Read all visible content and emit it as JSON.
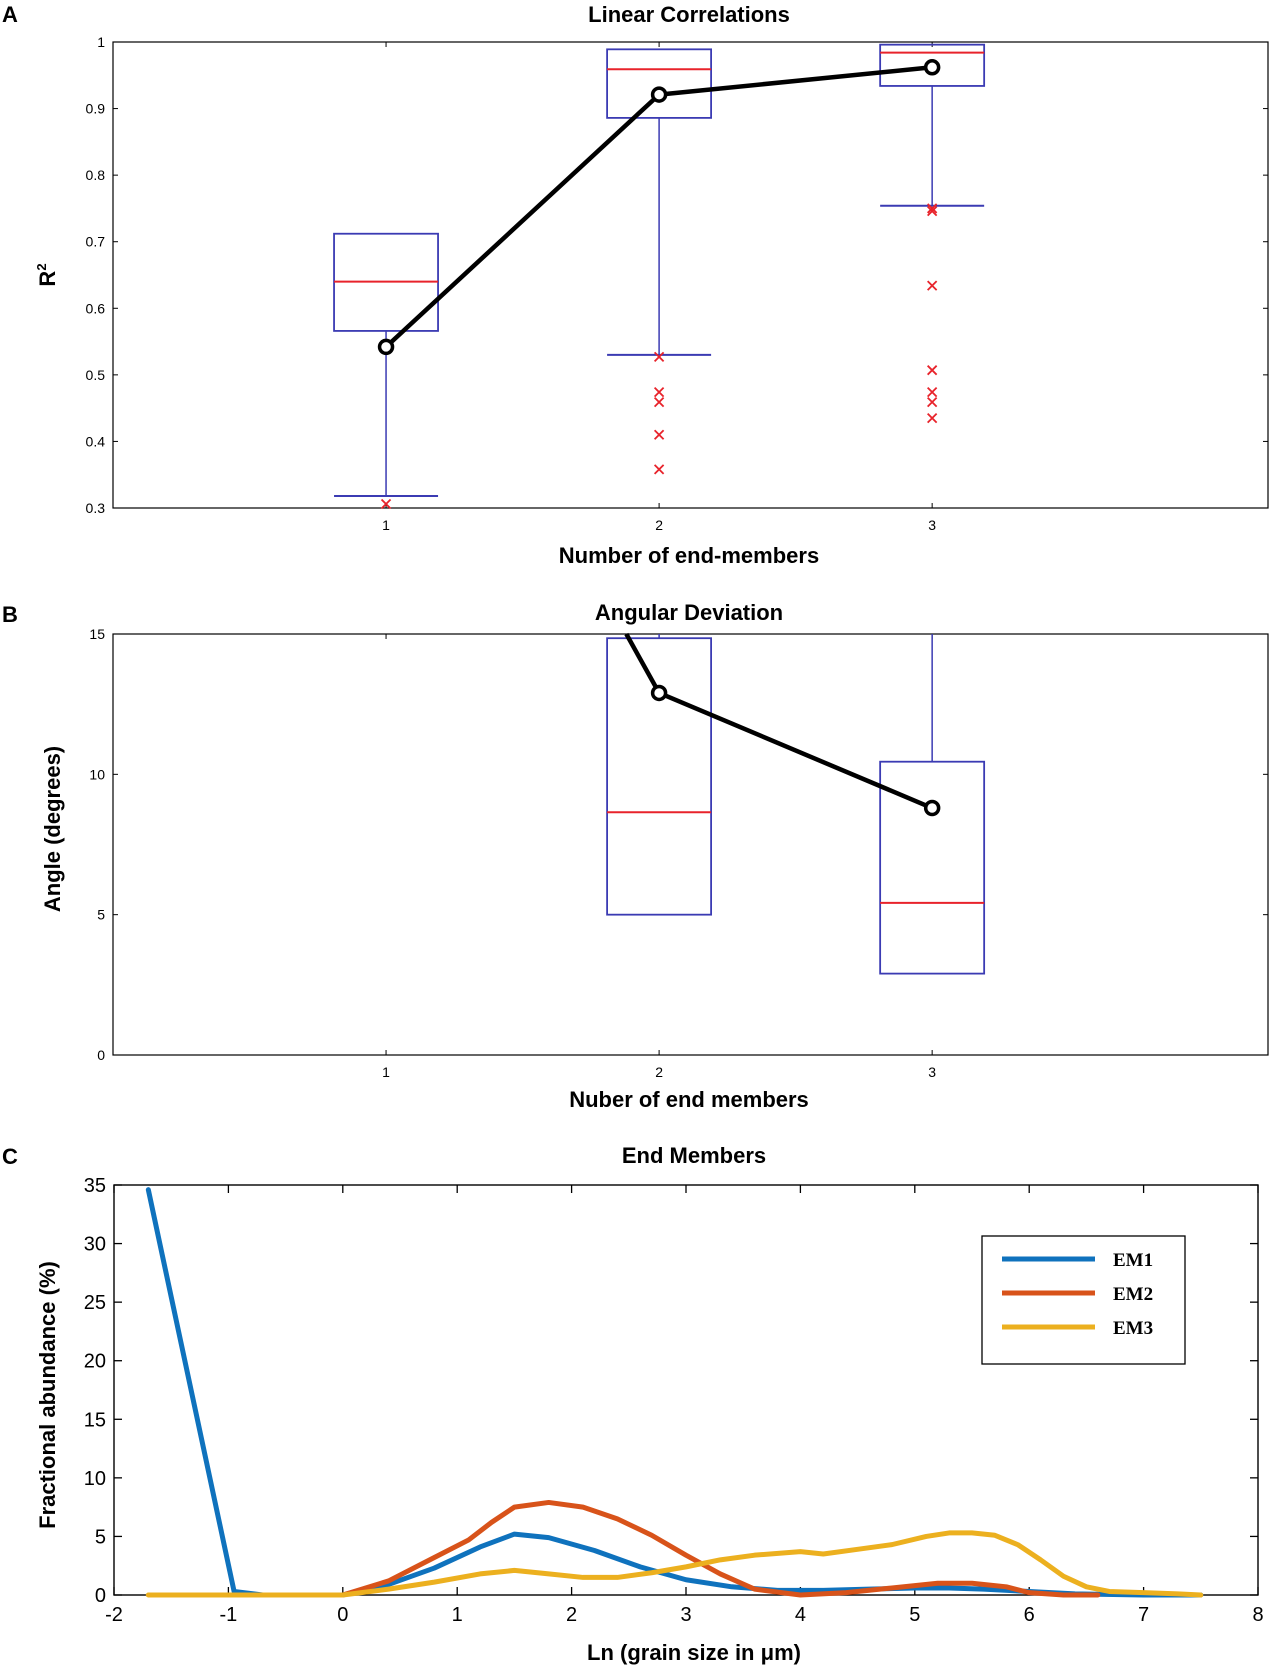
{
  "chart_data": [
    {
      "panel": "A",
      "type": "box",
      "title": "Linear Correlations",
      "xlabel": "Number of end-members",
      "ylabel": "R",
      "ylabel_sup": "2",
      "ylim": [
        0.3,
        1.0
      ],
      "xticks": [
        1,
        2,
        3
      ],
      "yticks": [
        "0.3",
        "0.4",
        "0.5",
        "0.6",
        "0.7",
        "0.8",
        "0.9",
        "1"
      ],
      "boxes": [
        {
          "x": 1,
          "q1": 0.566,
          "median": 0.64,
          "q3": 0.712,
          "whisker_low": 0.318,
          "whisker_high": 0.712,
          "outliers": [
            0.306
          ]
        },
        {
          "x": 2,
          "q1": 0.886,
          "median": 0.959,
          "q3": 0.989,
          "whisker_low": 0.53,
          "whisker_high": 0.989,
          "outliers": [
            0.527,
            0.474,
            0.459,
            0.41,
            0.358
          ]
        },
        {
          "x": 3,
          "q1": 0.934,
          "median": 0.984,
          "q3": 0.996,
          "whisker_low": 0.754,
          "whisker_high": 0.996,
          "outliers": [
            0.75,
            0.746,
            0.634,
            0.507,
            0.474,
            0.459,
            0.435
          ]
        }
      ],
      "mean_line": {
        "x": [
          1,
          2,
          3
        ],
        "y": [
          0.542,
          0.921,
          0.962
        ]
      },
      "colors": {
        "box": "#3b3bb3",
        "median": "#e8232b",
        "outlier": "#e8232b",
        "mean": "#000000"
      }
    },
    {
      "panel": "B",
      "type": "box",
      "title": "Angular Deviation",
      "xlabel": "Nuber of end members",
      "ylabel": "Angle (degrees)",
      "ylim": [
        0,
        15
      ],
      "xticks": [
        1,
        2,
        3
      ],
      "yticks": [
        "0",
        "5",
        "10",
        "15"
      ],
      "boxes": [
        {
          "x": 2,
          "q1": 5.0,
          "median": 8.65,
          "q3": 14.85,
          "whisker_low": 5.0,
          "whisker_high": 15.0
        },
        {
          "x": 3,
          "q1": 2.9,
          "median": 5.42,
          "q3": 10.45,
          "whisker_low": 2.9,
          "whisker_high": 15.0
        }
      ],
      "mean_line": {
        "x": [
          1.88,
          2,
          3
        ],
        "y": [
          15.0,
          12.9,
          8.8
        ]
      },
      "colors": {
        "box": "#3b3bb3",
        "median": "#e8232b",
        "mean": "#000000"
      }
    },
    {
      "panel": "C",
      "type": "line",
      "title": "End Members",
      "xlabel": "Ln (grain size in μm)",
      "ylabel": "Fractional abundance (%)",
      "xlim": [
        -2,
        8
      ],
      "ylim": [
        0,
        35
      ],
      "xticks": [
        "-2",
        "-1",
        "0",
        "1",
        "2",
        "3",
        "4",
        "5",
        "6",
        "7",
        "8"
      ],
      "yticks": [
        "0",
        "5",
        "10",
        "15",
        "20",
        "25",
        "30",
        "35"
      ],
      "legend": {
        "position": "top-right",
        "entries": [
          "EM1",
          "EM2",
          "EM3"
        ]
      },
      "series": [
        {
          "name": "EM1",
          "color": "#0f72bd",
          "x": [
            -1.7,
            -0.95,
            -0.7,
            0,
            0.4,
            0.8,
            1.2,
            1.5,
            1.8,
            2.2,
            2.6,
            3.0,
            3.4,
            3.8,
            4.2,
            4.6,
            5.0,
            5.3,
            5.6,
            6.0,
            6.4,
            7.0,
            7.5
          ],
          "y": [
            34.6,
            0.3,
            0.0,
            0.0,
            0.9,
            2.3,
            4.1,
            5.2,
            4.9,
            3.8,
            2.4,
            1.3,
            0.7,
            0.4,
            0.4,
            0.5,
            0.6,
            0.6,
            0.5,
            0.3,
            0.1,
            0.0,
            0.0
          ]
        },
        {
          "name": "EM2",
          "color": "#d8531a",
          "x": [
            0,
            0.4,
            0.8,
            1.1,
            1.3,
            1.5,
            1.8,
            2.1,
            2.4,
            2.7,
            3.0,
            3.3,
            3.6,
            4.0,
            4.4,
            4.8,
            5.2,
            5.5,
            5.8,
            6.0,
            6.3,
            6.6
          ],
          "y": [
            0.0,
            1.2,
            3.2,
            4.7,
            6.2,
            7.5,
            7.9,
            7.5,
            6.5,
            5.1,
            3.4,
            1.8,
            0.5,
            0.0,
            0.2,
            0.6,
            1.0,
            1.0,
            0.7,
            0.2,
            0.0,
            0.0
          ]
        },
        {
          "name": "EM3",
          "color": "#ecb01f",
          "x": [
            -1.7,
            -1.0,
            -0.5,
            0,
            0.4,
            0.8,
            1.2,
            1.5,
            1.8,
            2.1,
            2.4,
            2.7,
            3.0,
            3.3,
            3.6,
            4.0,
            4.2,
            4.5,
            4.8,
            5.1,
            5.3,
            5.5,
            5.7,
            5.9,
            6.1,
            6.3,
            6.5,
            6.7,
            7.0,
            7.3,
            7.5
          ],
          "y": [
            0.0,
            0.0,
            0.0,
            0.0,
            0.5,
            1.1,
            1.8,
            2.1,
            1.8,
            1.5,
            1.5,
            1.9,
            2.4,
            3.0,
            3.4,
            3.7,
            3.5,
            3.9,
            4.3,
            5.0,
            5.3,
            5.3,
            5.1,
            4.3,
            3.0,
            1.6,
            0.7,
            0.3,
            0.2,
            0.1,
            0.0
          ]
        }
      ]
    }
  ]
}
